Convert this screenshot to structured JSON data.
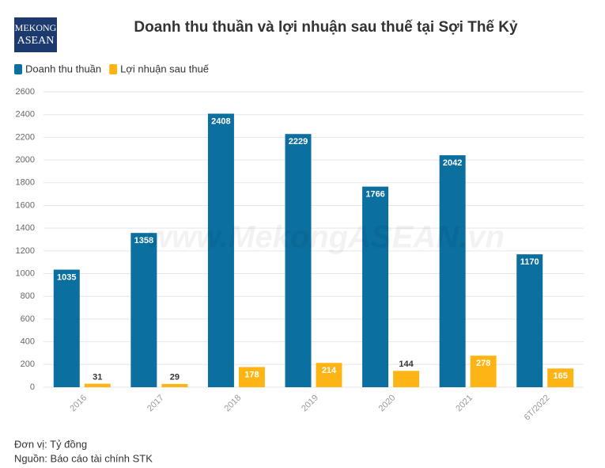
{
  "logo": {
    "line1": "MEKONG",
    "line2": "ASEAN"
  },
  "watermark": "www.MekongASEAN.vn",
  "chart_data": {
    "type": "bar",
    "title": "Doanh thu thuần và lợi nhuận sau thuế tại Sợi Thế Kỷ",
    "categories": [
      "2016",
      "2017",
      "2018",
      "2019",
      "2020",
      "2021",
      "6T/2022"
    ],
    "series": [
      {
        "name": "Doanh thu thuần",
        "color": "#0b6fa0",
        "values": [
          1035,
          1358,
          2408,
          2229,
          1766,
          2042,
          1170
        ]
      },
      {
        "name": "Lợi nhuận sau thuế",
        "color": "#fdb515",
        "values": [
          31,
          29,
          178,
          214,
          144,
          278,
          165
        ]
      }
    ],
    "ylim": [
      0,
      2600
    ],
    "yticks": [
      0,
      200,
      400,
      600,
      800,
      1000,
      1200,
      1400,
      1600,
      1800,
      2000,
      2200,
      2400,
      2600
    ],
    "grid": true,
    "notes": [
      "Đơn vị: Tỷ đồng",
      "Nguồn: Báo cáo tài chính STK"
    ]
  }
}
